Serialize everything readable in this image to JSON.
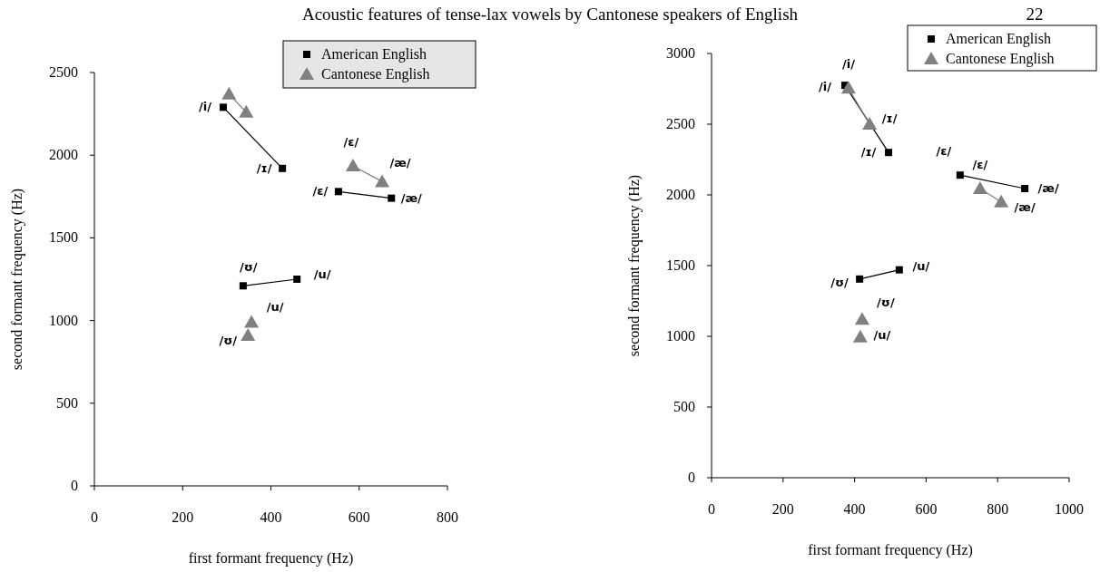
{
  "chart_data": [
    {
      "type": "scatter",
      "title": "Acoustic features of tense-lax vowels by Cantonese speakers of English",
      "xlabel": "first formant frequency (Hz)",
      "ylabel": "second formant frequency (Hz)",
      "xlim": [
        0,
        800
      ],
      "xticks": [
        0,
        200,
        400,
        600,
        800
      ],
      "ylim": [
        0,
        2500
      ],
      "yticks": [
        0,
        500,
        1000,
        1500,
        2000,
        2500
      ],
      "grid": false,
      "legend": "top right",
      "series": [
        {
          "name": "American English",
          "type": "scatter",
          "marker": "square",
          "color": "#000000",
          "x": [
            292,
            426,
            553,
            673,
            337,
            459
          ],
          "values": [
            2290,
            1920,
            1780,
            1740,
            1210,
            1250
          ]
        },
        {
          "name": "Cantonese English",
          "type": "scatter",
          "marker": "triangle",
          "color": "#808080",
          "x": [
            305,
            344,
            586,
            652,
            356,
            348
          ],
          "values": [
            2370,
            2260,
            1935,
            1840,
            990,
            910
          ]
        },
        {
          "type": "line",
          "marker": "none",
          "color": "#000000",
          "x": [
            292,
            426
          ],
          "values": [
            2290,
            1920
          ]
        },
        {
          "type": "line",
          "marker": "none",
          "color": "#000000",
          "x": [
            553,
            673
          ],
          "values": [
            1780,
            1740
          ]
        },
        {
          "type": "line",
          "marker": "none",
          "color": "#000000",
          "x": [
            337,
            459
          ],
          "values": [
            1210,
            1250
          ]
        },
        {
          "type": "line",
          "marker": "none",
          "color": "#808080",
          "x": [
            305,
            344
          ],
          "values": [
            2370,
            2260
          ]
        },
        {
          "type": "line",
          "marker": "none",
          "color": "#808080",
          "x": [
            586,
            652
          ],
          "values": [
            1935,
            1840
          ]
        }
      ],
      "annotations": [
        {
          "text": "/i/",
          "x": 292,
          "y": 2290
        },
        {
          "text": "/ɪ/",
          "x": 426,
          "y": 1920
        },
        {
          "text": "/ɛ/",
          "x": 553,
          "y": 1780
        },
        {
          "text": "/æ/",
          "x": 673,
          "y": 1740
        },
        {
          "text": "/ʊ/",
          "x": 337,
          "y": 1210
        },
        {
          "text": "/u/",
          "x": 459,
          "y": 1250
        },
        {
          "text": "/ɛ/",
          "x": 586,
          "y": 1935
        },
        {
          "text": "/æ/",
          "x": 652,
          "y": 1840
        },
        {
          "text": "/u/",
          "x": 356,
          "y": 990
        },
        {
          "text": "/ʊ/",
          "x": 348,
          "y": 910
        }
      ]
    },
    {
      "type": "scatter",
      "annotations": [
        {
          "text": "22"
        },
        {
          "text": "/i/",
          "x": 373,
          "y": 2775
        },
        {
          "text": "/ɪ/",
          "x": 495,
          "y": 2300
        },
        {
          "text": "/ɛ/",
          "x": 695,
          "y": 2140
        },
        {
          "text": "/æ/",
          "x": 876,
          "y": 2045
        },
        {
          "text": "/ʊ/",
          "x": 414,
          "y": 1405
        },
        {
          "text": "/u/",
          "x": 525,
          "y": 1470
        },
        {
          "text": "/i/",
          "x": 383,
          "y": 2755
        },
        {
          "text": "/ɪ/",
          "x": 442,
          "y": 2500
        },
        {
          "text": "/ɛ/",
          "x": 751,
          "y": 2045
        },
        {
          "text": "/æ/",
          "x": 810,
          "y": 1950
        },
        {
          "text": "/ʊ/",
          "x": 421,
          "y": 1120
        },
        {
          "text": "/u/",
          "x": 416,
          "y": 995
        }
      ],
      "xlabel": "first formant frequency (Hz)",
      "ylabel": "second formant frequency (Hz)",
      "xlim": [
        0,
        1000
      ],
      "xticks": [
        0,
        200,
        400,
        600,
        800,
        1000
      ],
      "ylim": [
        0,
        3000
      ],
      "yticks": [
        0,
        500,
        1000,
        1500,
        2000,
        2500,
        3000
      ],
      "grid": false,
      "legend": "top right",
      "series": [
        {
          "name": "American English",
          "type": "scatter",
          "marker": "square",
          "color": "#000000",
          "x": [
            373,
            495,
            695,
            876,
            414,
            525
          ],
          "values": [
            2775,
            2300,
            2140,
            2045,
            1405,
            1470
          ]
        },
        {
          "name": "Cantonese English",
          "type": "scatter",
          "marker": "triangle",
          "color": "#808080",
          "x": [
            383,
            442,
            751,
            810,
            421,
            416
          ],
          "values": [
            2755,
            2500,
            2045,
            1950,
            1120,
            995
          ]
        },
        {
          "type": "line",
          "marker": "none",
          "color": "#000000",
          "x": [
            373,
            495
          ],
          "values": [
            2775,
            2300
          ]
        },
        {
          "type": "line",
          "marker": "none",
          "color": "#000000",
          "x": [
            695,
            876
          ],
          "values": [
            2140,
            2045
          ]
        },
        {
          "type": "line",
          "marker": "none",
          "color": "#000000",
          "x": [
            414,
            525
          ],
          "values": [
            1405,
            1470
          ]
        },
        {
          "type": "line",
          "marker": "none",
          "color": "#808080",
          "x": [
            383,
            442
          ],
          "values": [
            2755,
            2500
          ]
        },
        {
          "type": "line",
          "marker": "none",
          "color": "#808080",
          "x": [
            751,
            810
          ],
          "values": [
            2045,
            1950
          ]
        }
      ]
    }
  ]
}
